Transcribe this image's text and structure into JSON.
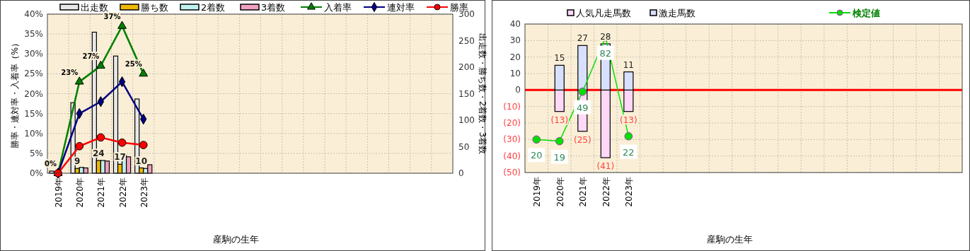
{
  "chart_data": [
    {
      "type": "bar",
      "xlabel": "産駒の生年",
      "ylabel": "勝率・連対率・入着率（%）",
      "y2label": "出走数・勝ち数・2着数・3着数",
      "categories": [
        "2019年",
        "2020年",
        "2021年",
        "2022年",
        "2023年",
        null,
        null,
        null,
        null,
        null,
        null,
        null,
        null,
        null,
        null,
        null,
        null,
        null,
        null
      ],
      "ylim": [
        0,
        40
      ],
      "yticks": [
        {
          "value": 0,
          "label": "0%"
        },
        {
          "value": 5,
          "label": "5%"
        },
        {
          "value": 10,
          "label": "10%"
        },
        {
          "value": 15,
          "label": "15%"
        },
        {
          "value": 20,
          "label": "20%"
        },
        {
          "value": 25,
          "label": "25%"
        },
        {
          "value": 30,
          "label": "30%"
        },
        {
          "value": 35,
          "label": "35%"
        },
        {
          "value": 40,
          "label": "40%"
        }
      ],
      "y2lim": [
        0,
        300
      ],
      "y2ticks": [
        0,
        50,
        100,
        150,
        200,
        250,
        300
      ],
      "grid": true,
      "legend": "top",
      "series": [
        {
          "name": "出走数",
          "type": "bar",
          "axis": "y2",
          "color": "#e8e8e8",
          "values": [
            4,
            133,
            266,
            221,
            140,
            null,
            null,
            null,
            null,
            null,
            null,
            null,
            null,
            null,
            null,
            null,
            null,
            null,
            null
          ]
        },
        {
          "name": "勝ち数",
          "type": "bar",
          "axis": "y2",
          "color": "#f0b800",
          "values": [
            0,
            9,
            24,
            17,
            10,
            null,
            null,
            null,
            null,
            null,
            null,
            null,
            null,
            null,
            null,
            null,
            null,
            null,
            null
          ],
          "value_labels": [
            null,
            "9",
            "24",
            "17",
            "10",
            null,
            null,
            null,
            null,
            null,
            null,
            null,
            null,
            null,
            null,
            null,
            null,
            null,
            null
          ]
        },
        {
          "name": "2着数",
          "type": "bar",
          "axis": "y2",
          "color": "#bff0f0",
          "values": [
            0,
            11,
            24,
            34,
            9,
            null,
            null,
            null,
            null,
            null,
            null,
            null,
            null,
            null,
            null,
            null,
            null,
            null,
            null
          ]
        },
        {
          "name": "3着数",
          "type": "bar",
          "axis": "y2",
          "color": "#f0a0c0",
          "values": [
            0,
            10,
            23,
            31,
            16,
            null,
            null,
            null,
            null,
            null,
            null,
            null,
            null,
            null,
            null,
            null,
            null,
            null,
            null
          ]
        },
        {
          "name": "入着率",
          "type": "line",
          "color": "#008000",
          "marker": "triangle",
          "values": [
            0,
            23,
            27,
            37,
            25,
            null,
            null,
            null,
            null,
            null,
            null,
            null,
            null,
            null,
            null,
            null,
            null,
            null,
            null
          ],
          "value_labels": [
            "0%",
            "23%",
            "27%",
            "37%",
            "25%",
            null,
            null,
            null,
            null,
            null,
            null,
            null,
            null,
            null,
            null,
            null,
            null,
            null,
            null
          ]
        },
        {
          "name": "連対率",
          "type": "line",
          "color": "#000080",
          "marker": "diamond",
          "values": [
            0,
            15,
            18,
            23,
            13.6,
            null,
            null,
            null,
            null,
            null,
            null,
            null,
            null,
            null,
            null,
            null,
            null,
            null,
            null
          ]
        },
        {
          "name": "勝率",
          "type": "line",
          "color": "#ff0000",
          "marker": "circle",
          "values": [
            0,
            6.8,
            9,
            7.7,
            7.1,
            null,
            null,
            null,
            null,
            null,
            null,
            null,
            null,
            null,
            null,
            null,
            null,
            null,
            null
          ]
        }
      ]
    },
    {
      "type": "bar",
      "stacked": true,
      "xlabel": "産駒の生年",
      "categories": [
        "2019年",
        "2020年",
        "2021年",
        "2022年",
        "2023年",
        null,
        null,
        null,
        null,
        null,
        null,
        null,
        null,
        null,
        null,
        null,
        null,
        null,
        null
      ],
      "ylim": [
        -50,
        40
      ],
      "yticks": [
        {
          "value": -50,
          "label": "(50)"
        },
        {
          "value": -40,
          "label": "(40)"
        },
        {
          "value": -30,
          "label": "(30)"
        },
        {
          "value": -20,
          "label": "(20)"
        },
        {
          "value": -10,
          "label": "(10)"
        },
        0,
        10,
        20,
        30,
        40
      ],
      "y2lim": [
        0,
        90
      ],
      "grid": true,
      "legend": "top",
      "ref_lines": [
        {
          "axis": "y",
          "value": 0,
          "color": "#ff0000"
        }
      ],
      "series": [
        {
          "name": "人気凡走馬数",
          "type": "bar",
          "color": "#ffd8f8",
          "values": [
            null,
            -13,
            -25,
            -41,
            -13,
            null,
            null,
            null,
            null,
            null,
            null,
            null,
            null,
            null,
            null,
            null,
            null,
            null,
            null
          ],
          "value_labels": [
            null,
            "(13)",
            "(25)",
            "(41)",
            "(13)",
            null,
            null,
            null,
            null,
            null,
            null,
            null,
            null,
            null,
            null,
            null,
            null,
            null,
            null
          ]
        },
        {
          "name": "激走馬数",
          "type": "bar",
          "color": "#d8e0ff",
          "values": [
            null,
            15,
            27,
            28,
            11,
            null,
            null,
            null,
            null,
            null,
            null,
            null,
            null,
            null,
            null,
            null,
            null,
            null,
            null
          ],
          "value_labels": [
            null,
            "15",
            "27",
            "28",
            "11",
            null,
            null,
            null,
            null,
            null,
            null,
            null,
            null,
            null,
            null,
            null,
            null,
            null,
            null
          ]
        },
        {
          "name": "検定値",
          "type": "line",
          "axis": "y2",
          "color": "#00e000",
          "marker": "circle",
          "values": [
            20,
            19,
            49,
            82,
            22,
            null,
            null,
            null,
            null,
            null,
            null,
            null,
            null,
            null,
            null,
            null,
            null,
            null,
            null
          ],
          "value_labels": [
            "20",
            "19",
            "49",
            "82",
            "22",
            null,
            null,
            null,
            null,
            null,
            null,
            null,
            null,
            null,
            null,
            null,
            null,
            null,
            null
          ]
        }
      ]
    }
  ]
}
